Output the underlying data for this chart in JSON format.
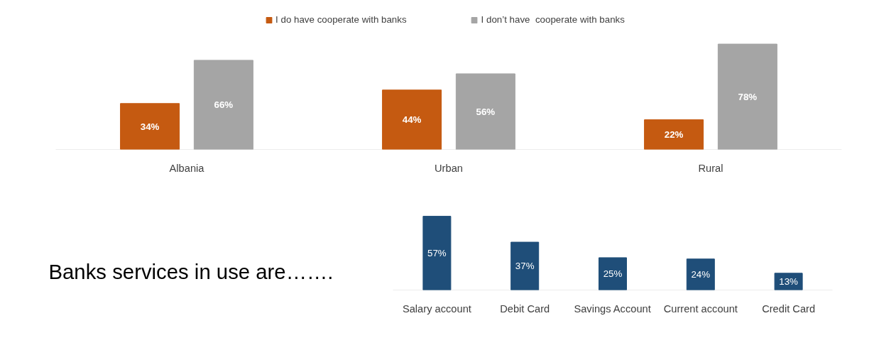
{
  "chart_data": [
    {
      "type": "bar",
      "categories": [
        "Albania",
        "Urban",
        "Rural"
      ],
      "series": [
        {
          "name": "I do have cooperate with banks",
          "color": "#c55a11",
          "values": [
            34,
            44,
            22
          ],
          "value_labels": [
            "34%",
            "44%",
            "22%"
          ]
        },
        {
          "name": "I don’t have  cooperate with banks",
          "color": "#a5a5a5",
          "values": [
            66,
            56,
            78
          ],
          "value_labels": [
            "66%",
            "56%",
            "78%"
          ]
        }
      ],
      "legend": "top",
      "grid": false,
      "tick_labels": "x"
    },
    {
      "type": "bar",
      "title": "Banks services in use are…….",
      "categories": [
        "Salary account",
        "Debit Card",
        "Savings Account",
        "Current account",
        "Credit Card"
      ],
      "values": [
        57,
        37,
        25,
        24,
        13
      ],
      "color": "#1f4e79",
      "value_labels": [
        "57%",
        "37%",
        "25%",
        "24%",
        "13%"
      ],
      "grid": false,
      "tick_labels": "x"
    }
  ]
}
